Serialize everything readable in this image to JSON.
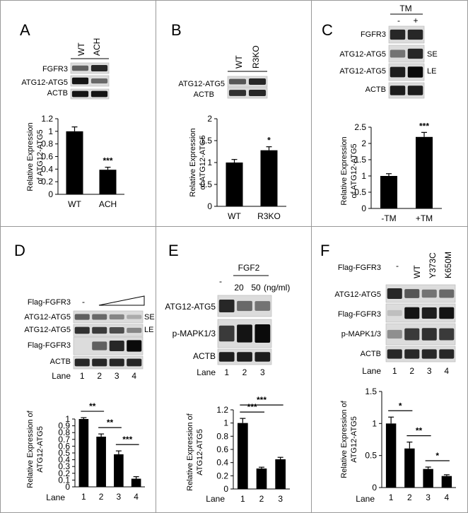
{
  "panels": {
    "A": {
      "letter": "A",
      "lanes": [
        "WT",
        "ACH"
      ],
      "blots": [
        {
          "label": "FGFR3",
          "bands": [
            0.55,
            0.85
          ]
        },
        {
          "label": "ATG12-ATG5",
          "bands": [
            0.95,
            0.5
          ]
        },
        {
          "label": "ACTB",
          "bands": [
            0.95,
            0.95
          ]
        }
      ],
      "chart_data": {
        "type": "bar",
        "categories": [
          "WT",
          "ACH"
        ],
        "values": [
          1.0,
          0.39
        ],
        "errors": [
          0.07,
          0.04
        ],
        "ylabel": "Relative Expression of ATG12-ATG5",
        "ylabel_lines": [
          "Relative Expression",
          "of ATG12-ATG5"
        ],
        "ylim": [
          0,
          1.2
        ],
        "yticks": [
          "0",
          "0.2",
          "0.4",
          "0.6",
          "0.8",
          "1",
          "1.2"
        ],
        "significance": [
          {
            "bar": 1,
            "text": "***"
          }
        ]
      }
    },
    "B": {
      "letter": "B",
      "lanes": [
        "WT",
        "R3KO"
      ],
      "blots": [
        {
          "label": "ATG12-ATG5",
          "bands": [
            0.6,
            0.85
          ]
        },
        {
          "label": "ACTB",
          "bands": [
            0.8,
            0.85
          ]
        }
      ],
      "chart_data": {
        "type": "bar",
        "categories": [
          "WT",
          "R3KO"
        ],
        "values": [
          1.0,
          1.28
        ],
        "errors": [
          0.07,
          0.08
        ],
        "ylabel": "Relative Expression of ATG12-ATG5",
        "ylabel_lines": [
          "Relative Expression",
          "of ATG12-ATG5"
        ],
        "ylim": [
          0,
          2
        ],
        "yticks": [
          "0",
          "0.5",
          "1",
          "1.5",
          "2"
        ],
        "significance": [
          {
            "bar": 1,
            "text": "*"
          }
        ]
      }
    },
    "C": {
      "letter": "C",
      "treatment": "TM",
      "lanes": [
        "-",
        "+"
      ],
      "blots": [
        {
          "label": "FGFR3",
          "side": "",
          "bands": [
            0.85,
            0.85
          ]
        },
        {
          "label": "ATG12-ATG5",
          "side": "SE",
          "bands": [
            0.45,
            0.85
          ]
        },
        {
          "label": "ATG12-ATG5",
          "side": "LE",
          "bands": [
            0.9,
            1.0
          ]
        },
        {
          "label": "ACTB",
          "side": "",
          "bands": [
            0.9,
            0.9
          ]
        }
      ],
      "chart_data": {
        "type": "bar",
        "categories": [
          "-TM",
          "+TM"
        ],
        "values": [
          1.0,
          2.2
        ],
        "errors": [
          0.07,
          0.14
        ],
        "ylabel": "Relative Expression of ATG12-ATG5",
        "ylabel_lines": [
          "Relative Expression",
          "of ATG12-ATG5"
        ],
        "ylim": [
          0,
          2.5
        ],
        "yticks": [
          "0",
          "0.5",
          "1",
          "1.5",
          "2",
          "2.5"
        ],
        "significance": [
          {
            "bar": 1,
            "text": "***"
          }
        ]
      }
    },
    "D": {
      "letter": "D",
      "construct": "Flag-FGFR3",
      "lane_marks": [
        "-"
      ],
      "lane_label": "Lane",
      "lane_numbers": [
        "1",
        "2",
        "3",
        "4"
      ],
      "blots": [
        {
          "label": "ATG12-ATG5",
          "side": "SE",
          "bands": [
            0.55,
            0.5,
            0.35,
            0.15
          ]
        },
        {
          "label": "ATG12-ATG5",
          "side": "LE",
          "bands": [
            0.8,
            0.75,
            0.65,
            0.35
          ]
        },
        {
          "label": "Flag-FGFR3",
          "side": "",
          "bands": [
            0.0,
            0.55,
            0.85,
            1.0
          ]
        },
        {
          "label": "ACTB",
          "side": "",
          "bands": [
            0.85,
            0.85,
            0.85,
            0.85
          ]
        }
      ],
      "chart_data": {
        "type": "bar",
        "categories": [
          "1",
          "2",
          "3",
          "4"
        ],
        "values": [
          1.0,
          0.74,
          0.48,
          0.12
        ],
        "errors": [
          0.02,
          0.04,
          0.05,
          0.03
        ],
        "xlabel": "Lane",
        "ylabel": "Relative Expression of ATG12-ATG5",
        "ylabel_lines": [
          "Relative Expression of",
          "ATG12-ATG5"
        ],
        "ylim": [
          0,
          1.0
        ],
        "yticks": [
          "0",
          "0.1",
          "0.2",
          "0.3",
          "0.4",
          "0.5",
          "0.6",
          "0.7",
          "0.8",
          "0.9",
          "1"
        ],
        "brackets": [
          {
            "from": 0,
            "to": 1,
            "text": "**"
          },
          {
            "from": 1,
            "to": 2,
            "text": "**"
          },
          {
            "from": 2,
            "to": 3,
            "text": "***"
          }
        ]
      }
    },
    "E": {
      "letter": "E",
      "treatment": "FGF2",
      "lane_marks": [
        "-",
        "20",
        "50",
        "(ng/ml)"
      ],
      "lane_label": "Lane",
      "lane_numbers": [
        "1",
        "2",
        "3"
      ],
      "blots": [
        {
          "label": "ATG12-ATG5",
          "bands": [
            0.85,
            0.5,
            0.45
          ]
        },
        {
          "label": "p-MAPK1/3",
          "bands": [
            0.75,
            0.95,
            1.0
          ]
        },
        {
          "label": "ACTB",
          "bands": [
            0.9,
            0.9,
            0.9
          ]
        }
      ],
      "chart_data": {
        "type": "bar",
        "categories": [
          "1",
          "2",
          "3"
        ],
        "values": [
          1.0,
          0.31,
          0.45
        ],
        "errors": [
          0.07,
          0.02,
          0.03
        ],
        "xlabel": "Lane",
        "ylabel": "Relative Expression of ATG12-ATG5",
        "ylabel_lines": [
          "Relative Expression of",
          "ATG12-ATG5"
        ],
        "ylim": [
          0,
          1.2
        ],
        "yticks": [
          "0",
          "0.2",
          "0.4",
          "0.6",
          "0.8",
          "1",
          "1.2"
        ],
        "brackets": [
          {
            "from": 0,
            "to": 1,
            "text": "***"
          },
          {
            "from": 0,
            "to": 2,
            "text": "***"
          }
        ]
      }
    },
    "F": {
      "letter": "F",
      "construct": "Flag-FGFR3",
      "lanes": [
        "-",
        "WT",
        "Y373C",
        "K650M"
      ],
      "lane_label": "Lane",
      "lane_numbers": [
        "1",
        "2",
        "3",
        "4"
      ],
      "blots": [
        {
          "label": "ATG12-ATG5",
          "bands": [
            0.85,
            0.6,
            0.45,
            0.5
          ]
        },
        {
          "label": "Flag-FGFR3",
          "bands": [
            0.05,
            0.95,
            0.9,
            0.95
          ]
        },
        {
          "label": "p-MAPK1/3",
          "bands": [
            0.3,
            0.75,
            0.8,
            0.75
          ]
        },
        {
          "label": "ACTB",
          "bands": [
            0.85,
            0.85,
            0.85,
            0.85
          ]
        }
      ],
      "chart_data": {
        "type": "bar",
        "categories": [
          "1",
          "2",
          "3",
          "4"
        ],
        "values": [
          1.0,
          0.61,
          0.29,
          0.18
        ],
        "errors": [
          0.1,
          0.1,
          0.03,
          0.02
        ],
        "xlabel": "Lane",
        "ylabel": "Relative Expression of ATG12-ATG5",
        "ylabel_lines": [
          "Relative Expression of",
          "ATG12-ATG5"
        ],
        "ylim": [
          0,
          1.5
        ],
        "yticks": [
          "0",
          "0.5",
          "1",
          "1.5"
        ],
        "brackets": [
          {
            "from": 0,
            "to": 1,
            "text": "*"
          },
          {
            "from": 1,
            "to": 2,
            "text": "**"
          },
          {
            "from": 2,
            "to": 3,
            "text": "*"
          }
        ]
      }
    }
  }
}
